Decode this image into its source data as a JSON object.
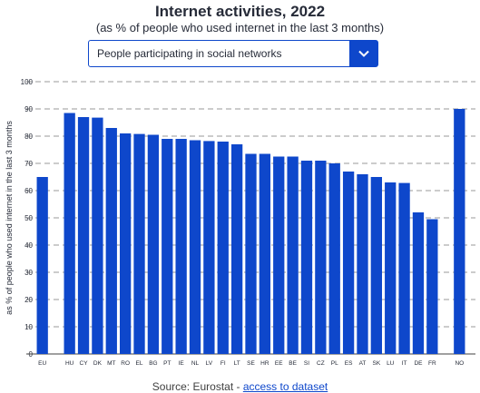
{
  "header": {
    "title": "Internet activities, 2022",
    "subtitle": "(as % of people who used internet in the last 3 months)"
  },
  "filter": {
    "selected": "People participating in social networks"
  },
  "footer": {
    "source_prefix": "Source: Eurostat - ",
    "link_label": "access to dataset"
  },
  "colors": {
    "bar": "#0e47cb",
    "accent": "#0e47cb",
    "grid": "#9a9a9a"
  },
  "chart_data": {
    "type": "bar",
    "title": "Internet activities, 2022",
    "subtitle": "(as % of people who used internet in the last 3 months)",
    "ylabel": "as % of people who used internet in the last 3 months",
    "xlabel": "",
    "ylim": [
      0,
      100
    ],
    "yticks": [
      0,
      10,
      20,
      30,
      40,
      50,
      60,
      70,
      80,
      90,
      100
    ],
    "grid": true,
    "legend": "none",
    "categories": [
      "EU",
      "HU",
      "CY",
      "DK",
      "MT",
      "RO",
      "EL",
      "BG",
      "PT",
      "IE",
      "NL",
      "LV",
      "FI",
      "LT",
      "SE",
      "HR",
      "EE",
      "BE",
      "SI",
      "CZ",
      "PL",
      "ES",
      "AT",
      "SK",
      "LU",
      "IT",
      "DE",
      "FR",
      "NO"
    ],
    "groups": [
      1,
      2,
      2,
      2,
      2,
      2,
      2,
      2,
      2,
      2,
      2,
      2,
      2,
      2,
      2,
      2,
      2,
      2,
      2,
      2,
      2,
      2,
      2,
      2,
      2,
      2,
      2,
      2,
      3
    ],
    "values": [
      65,
      88.5,
      87,
      86.8,
      83,
      81,
      80.8,
      80.5,
      79,
      79,
      78.5,
      78.2,
      78,
      77,
      73.5,
      73.5,
      72.5,
      72.5,
      71,
      71,
      70,
      67,
      66,
      65,
      63,
      62.8,
      52,
      49.5,
      90
    ]
  }
}
